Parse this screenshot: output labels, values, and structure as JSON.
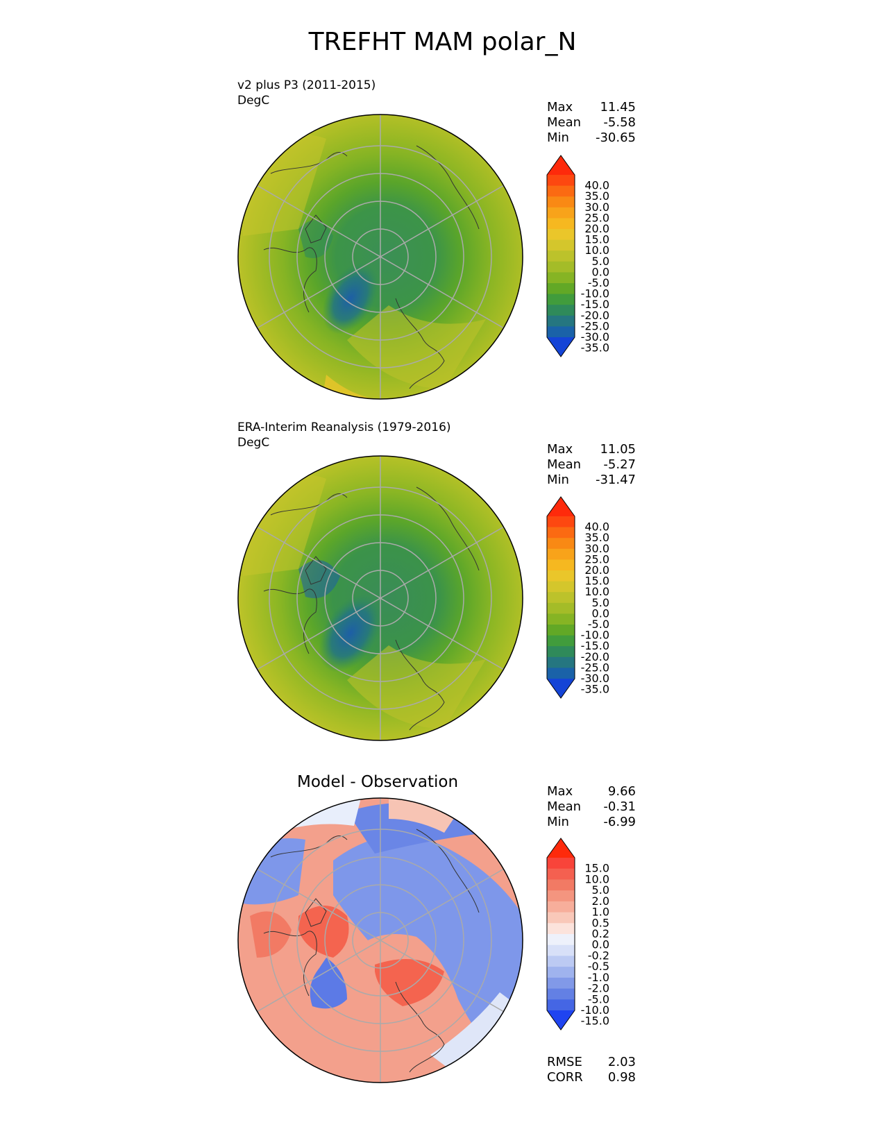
{
  "title": "TREFHT MAM polar_N",
  "panels": [
    {
      "id": "test",
      "subtitle_line1": "v2 plus P3 (2011-2015)",
      "subtitle_line2": "DegC",
      "stats": {
        "max_label": "Max",
        "max": "11.45",
        "mean_label": "Mean",
        "mean": "-5.58",
        "min_label": "Min",
        "min": "-30.65"
      },
      "colorbar": {
        "ticks": [
          "40.0",
          "35.0",
          "30.0",
          "25.0",
          "20.0",
          "15.0",
          "10.0",
          "5.0",
          "0.0",
          "-5.0",
          "-10.0",
          "-15.0",
          "-20.0",
          "-25.0",
          "-30.0",
          "-35.0"
        ],
        "colors": [
          "#fe2a0b",
          "#fd4810",
          "#fb6a12",
          "#f98914",
          "#f8a31a",
          "#f6b820",
          "#eac62a",
          "#d4c62c",
          "#bcc22b",
          "#a4bc28",
          "#86b424",
          "#62a826",
          "#419c3c",
          "#2f8a5a",
          "#257680",
          "#1a62a8",
          "#1444d6"
        ]
      },
      "map": {
        "palette": "temp"
      }
    },
    {
      "id": "reference",
      "subtitle_line1": "ERA-Interim Reanalysis (1979-2016)",
      "subtitle_line2": "DegC",
      "stats": {
        "max_label": "Max",
        "max": "11.05",
        "mean_label": "Mean",
        "mean": "-5.27",
        "min_label": "Min",
        "min": "-31.47"
      },
      "colorbar": {
        "ticks": [
          "40.0",
          "35.0",
          "30.0",
          "25.0",
          "20.0",
          "15.0",
          "10.0",
          "5.0",
          "0.0",
          "-5.0",
          "-10.0",
          "-15.0",
          "-20.0",
          "-25.0",
          "-30.0",
          "-35.0"
        ],
        "colors": [
          "#fe2a0b",
          "#fd4810",
          "#fb6a12",
          "#f98914",
          "#f8a31a",
          "#f6b820",
          "#eac62a",
          "#d4c62c",
          "#bcc22b",
          "#a4bc28",
          "#86b424",
          "#62a826",
          "#419c3c",
          "#2f8a5a",
          "#257680",
          "#1a62a8",
          "#1444d6"
        ]
      },
      "map": {
        "palette": "temp"
      }
    },
    {
      "id": "difference",
      "title": "Model - Observation",
      "stats": {
        "max_label": "Max",
        "max": "9.66",
        "mean_label": "Mean",
        "mean": "-0.31",
        "min_label": "Min",
        "min": "-6.99"
      },
      "metrics": {
        "rmse_label": "RMSE",
        "rmse": "2.03",
        "corr_label": "CORR",
        "corr": "0.98"
      },
      "colorbar": {
        "ticks": [
          "15.0",
          "10.0",
          "5.0",
          "2.0",
          "1.0",
          "0.5",
          "0.2",
          "0.0",
          "-0.2",
          "-0.5",
          "-1.0",
          "-2.0",
          "-5.0",
          "-10.0",
          "-15.0"
        ],
        "colors": [
          "#fe2a0b",
          "#f8443a",
          "#f46050",
          "#f27a64",
          "#f4957f",
          "#f7ae9b",
          "#f9c8b9",
          "#fce3dc",
          "#eef1fb",
          "#d8e0f8",
          "#bccaf3",
          "#9fb3ee",
          "#8199e8",
          "#6380e4",
          "#4566e4",
          "#1f44f0"
        ]
      },
      "map": {
        "palette": "diff"
      }
    }
  ]
}
